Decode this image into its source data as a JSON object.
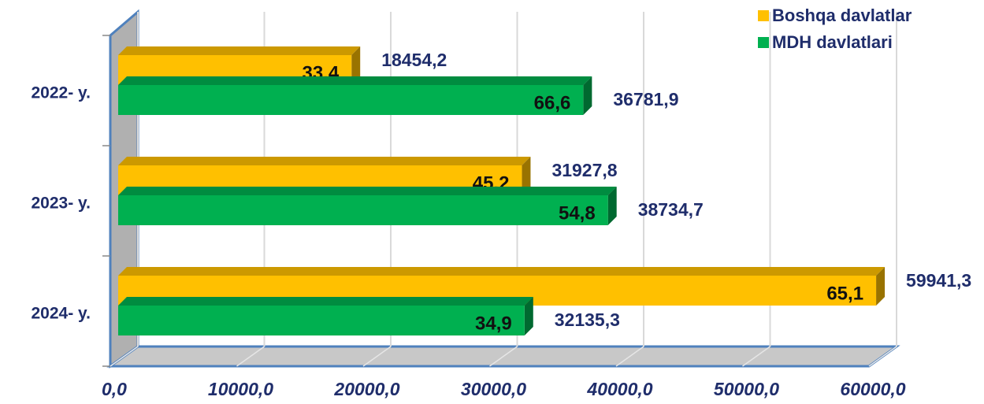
{
  "chart_data": {
    "type": "bar3d_horizontal",
    "categories": [
      "2022- y.",
      "2023- y.",
      "2024- y."
    ],
    "series": [
      {
        "name": "Boshqa davlatlar",
        "color": "#ffc000",
        "values": [
          18454.2,
          31927.8,
          59941.3
        ],
        "value_labels": [
          "18454,2",
          "31927,8",
          "59941,3"
        ],
        "shares": [
          33.4,
          45.2,
          65.1
        ],
        "share_labels": [
          "33.4",
          "45,2",
          "65,1"
        ]
      },
      {
        "name": "MDH davlatlari",
        "color": "#00b050",
        "values": [
          36781.9,
          38734.7,
          32135.3
        ],
        "value_labels": [
          "36781,9",
          "38734,7",
          "32135,3"
        ],
        "shares": [
          66.6,
          54.8,
          34.9
        ],
        "share_labels": [
          "66,6",
          "54,8",
          "34,9"
        ]
      }
    ],
    "xlim": [
      0,
      60000
    ],
    "xticks": [
      {
        "value": 0,
        "label": "0,0"
      },
      {
        "value": 10000,
        "label": "10000,0"
      },
      {
        "value": 20000,
        "label": "20000,0"
      },
      {
        "value": 30000,
        "label": "30000,0"
      },
      {
        "value": 40000,
        "label": "40000,0"
      },
      {
        "value": 50000,
        "label": "50000,0"
      },
      {
        "value": 60000,
        "label": "60000,0"
      }
    ],
    "grid": true,
    "legend": "top-right"
  }
}
